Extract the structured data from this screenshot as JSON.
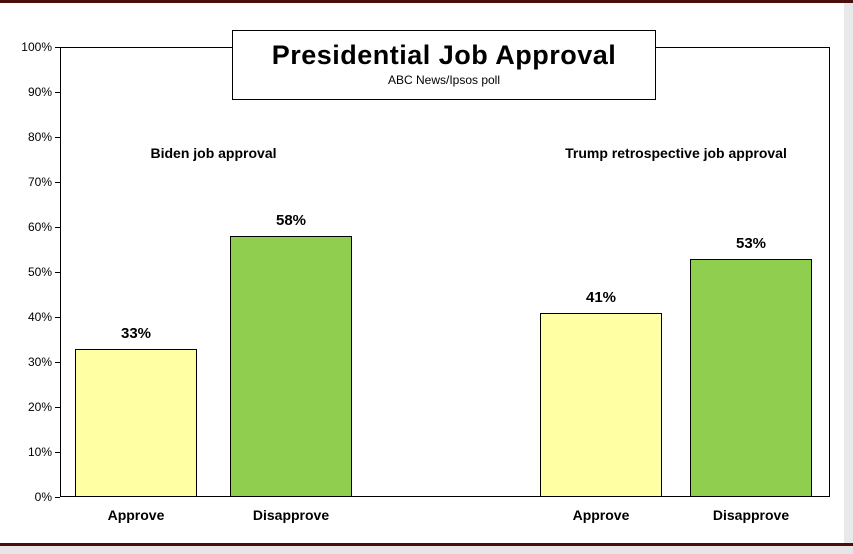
{
  "chart_data": {
    "type": "bar",
    "title": "Presidential Job Approval",
    "subtitle": "ABC News/Ipsos poll",
    "ylabel": "",
    "xlabel": "",
    "ylim": [
      0,
      100
    ],
    "ytick_step": 10,
    "ytick_suffix": "%",
    "grid": false,
    "groups": [
      {
        "label": "Biden job approval",
        "bars": [
          {
            "category": "Approve",
            "value": 33,
            "value_label": "33%"
          },
          {
            "category": "Disapprove",
            "value": 58,
            "value_label": "58%"
          }
        ]
      },
      {
        "label": "Trump retrospective job approval",
        "bars": [
          {
            "category": "Approve",
            "value": 41,
            "value_label": "41%"
          },
          {
            "category": "Disapprove",
            "value": 53,
            "value_label": "53%"
          }
        ]
      }
    ],
    "colors": {
      "approve_fill": "#FFFFA3",
      "disapprove_fill": "#90CE4F",
      "bar_border": "#000000",
      "axis": "#000000",
      "page_edge": "#4d0d0d"
    }
  }
}
